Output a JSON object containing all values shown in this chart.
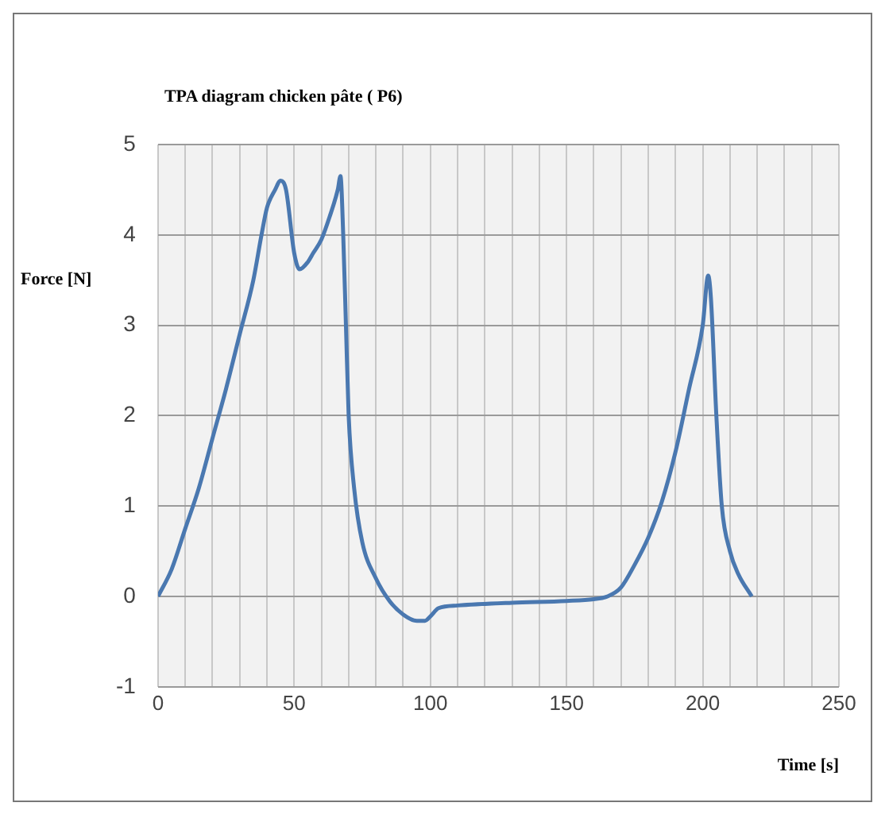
{
  "chart_data": {
    "type": "line",
    "title": "TPA diagram chicken pâte ( P6)",
    "xlabel": "Time [s]",
    "ylabel": "Force [N]",
    "xlim": [
      0,
      250
    ],
    "ylim": [
      -1,
      5
    ],
    "xticks": [
      0,
      {
        "value": 10,
        "label": null
      },
      {
        "value": 20,
        "label": null
      },
      {
        "value": 30,
        "label": null
      },
      {
        "value": 40,
        "label": null
      },
      50,
      {
        "value": 60,
        "label": null
      },
      {
        "value": 70,
        "label": null
      },
      {
        "value": 80,
        "label": null
      },
      {
        "value": 90,
        "label": null
      },
      100,
      {
        "value": 110,
        "label": null
      },
      {
        "value": 120,
        "label": null
      },
      {
        "value": 130,
        "label": null
      },
      {
        "value": 140,
        "label": null
      },
      150,
      {
        "value": 160,
        "label": null
      },
      {
        "value": 170,
        "label": null
      },
      {
        "value": 180,
        "label": null
      },
      {
        "value": 190,
        "label": null
      },
      200,
      {
        "value": 210,
        "label": null
      },
      {
        "value": 220,
        "label": null
      },
      {
        "value": 230,
        "label": null
      },
      {
        "value": 240,
        "label": null
      },
      250
    ],
    "yticks": [
      -1,
      0,
      1,
      2,
      3,
      4,
      5
    ],
    "grid": true,
    "legend": false,
    "marker": "none",
    "line_style": "solid",
    "series": [
      {
        "color": "#4a78b0",
        "x": [
          0,
          5,
          10,
          15,
          20,
          25,
          30,
          35,
          38,
          40,
          43,
          45,
          47,
          50,
          52,
          55,
          57,
          60,
          63,
          66,
          67,
          68,
          69,
          70,
          72,
          75,
          80,
          85,
          90,
          95,
          98,
          100,
          103,
          110,
          130,
          150,
          160,
          165,
          170,
          175,
          180,
          185,
          190,
          195,
          200,
          202,
          203,
          205,
          207,
          210,
          213,
          218
        ],
        "values": [
          0,
          0.3,
          0.75,
          1.2,
          1.75,
          2.3,
          2.9,
          3.5,
          4.0,
          4.3,
          4.5,
          4.6,
          4.5,
          3.8,
          3.62,
          3.7,
          3.8,
          3.95,
          4.2,
          4.5,
          4.65,
          4.0,
          3.0,
          2.0,
          1.2,
          0.6,
          0.2,
          -0.05,
          -0.2,
          -0.27,
          -0.27,
          -0.22,
          -0.13,
          -0.1,
          -0.07,
          -0.05,
          -0.03,
          0,
          0.1,
          0.35,
          0.65,
          1.05,
          1.6,
          2.3,
          3.0,
          3.55,
          3.3,
          2.0,
          1.0,
          0.5,
          0.25,
          0
        ]
      }
    ]
  }
}
